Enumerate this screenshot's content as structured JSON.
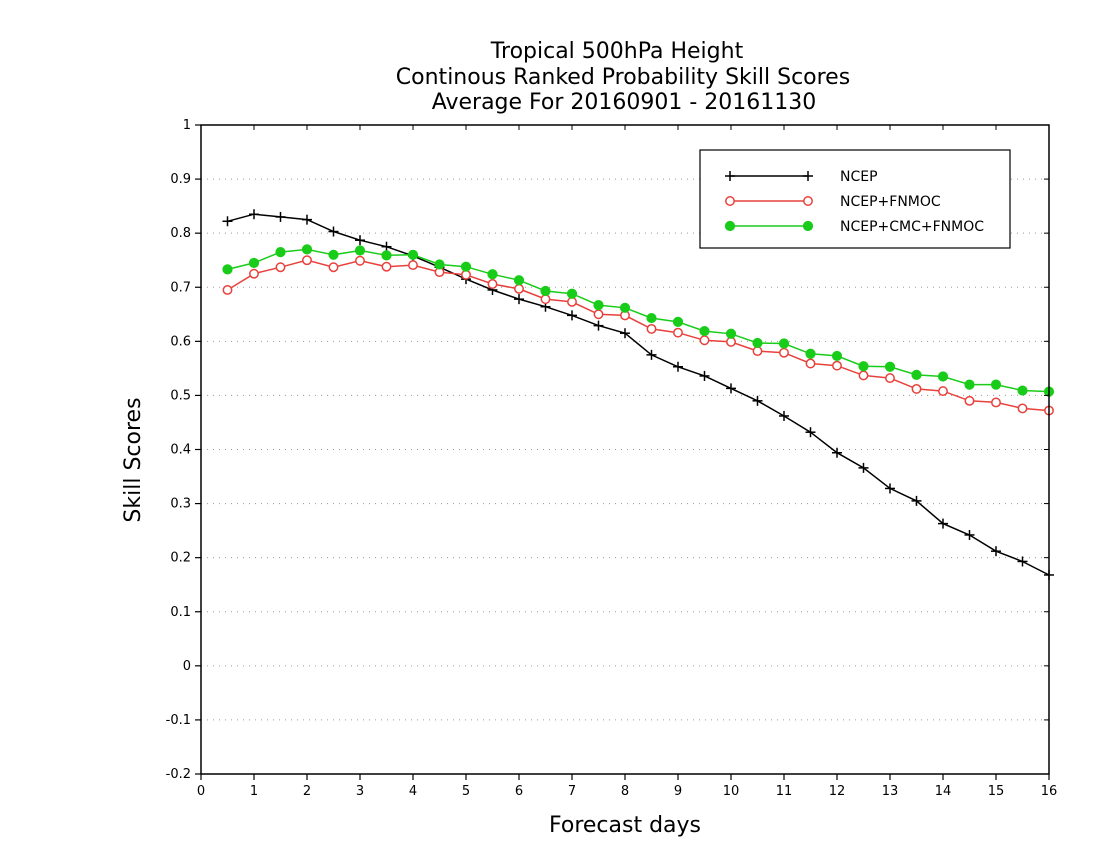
{
  "chart_data": {
    "type": "line",
    "title": [
      "Tropical 500hPa Height",
      "Continous Ranked Probability Skill Scores",
      "Average For 20160901 - 20161130"
    ],
    "xlabel": "Forecast days",
    "ylabel": "Skill Scores",
    "xlim": [
      0,
      16
    ],
    "ylim": [
      -0.2,
      1
    ],
    "xticks": [
      0,
      1,
      2,
      3,
      4,
      5,
      6,
      7,
      8,
      9,
      10,
      11,
      12,
      13,
      14,
      15,
      16
    ],
    "yticks": [
      -0.2,
      -0.1,
      0,
      0.1,
      0.2,
      0.3,
      0.4,
      0.5,
      0.6,
      0.7,
      0.8,
      0.9,
      1
    ],
    "ytick_labels": [
      "-0.2",
      "-0.1",
      "0",
      "0.1",
      "0.2",
      "0.3",
      "0.4",
      "0.5",
      "0.6",
      "0.7",
      "0.8",
      "0.9",
      "1"
    ],
    "grid": true,
    "legend_position": "top-right",
    "x": [
      0.5,
      1,
      1.5,
      2,
      2.5,
      3,
      3.5,
      4,
      4.5,
      5,
      5.5,
      6,
      6.5,
      7,
      7.5,
      8,
      8.5,
      9,
      9.5,
      10,
      10.5,
      11,
      11.5,
      12,
      12.5,
      13,
      13.5,
      14,
      14.5,
      15,
      15.5,
      16
    ],
    "series": [
      {
        "name": "NCEP",
        "color": "#000000",
        "marker": "plus",
        "values": [
          0.822,
          0.835,
          0.83,
          0.825,
          0.803,
          0.787,
          0.775,
          0.758,
          0.737,
          0.715,
          0.695,
          0.678,
          0.664,
          0.648,
          0.629,
          0.615,
          0.575,
          0.553,
          0.536,
          0.513,
          0.49,
          0.462,
          0.432,
          0.394,
          0.366,
          0.328,
          0.305,
          0.263,
          0.242,
          0.212,
          0.193,
          0.168
        ]
      },
      {
        "name": "NCEP+FNMOC",
        "color": "#e8413c",
        "marker": "open-circle",
        "values": [
          0.695,
          0.725,
          0.737,
          0.75,
          0.737,
          0.749,
          0.738,
          0.741,
          0.728,
          0.723,
          0.706,
          0.697,
          0.678,
          0.673,
          0.65,
          0.648,
          0.623,
          0.616,
          0.602,
          0.599,
          0.582,
          0.579,
          0.559,
          0.555,
          0.537,
          0.532,
          0.512,
          0.508,
          0.49,
          0.487,
          0.476,
          0.472
        ]
      },
      {
        "name": "NCEP+CMC+FNMOC",
        "color": "#19cc19",
        "marker": "filled-circle",
        "values": [
          0.733,
          0.745,
          0.765,
          0.77,
          0.76,
          0.768,
          0.759,
          0.76,
          0.742,
          0.738,
          0.724,
          0.713,
          0.693,
          0.688,
          0.667,
          0.662,
          0.643,
          0.636,
          0.619,
          0.614,
          0.597,
          0.596,
          0.577,
          0.573,
          0.554,
          0.553,
          0.538,
          0.535,
          0.52,
          0.52,
          0.509,
          0.507
        ]
      }
    ]
  }
}
